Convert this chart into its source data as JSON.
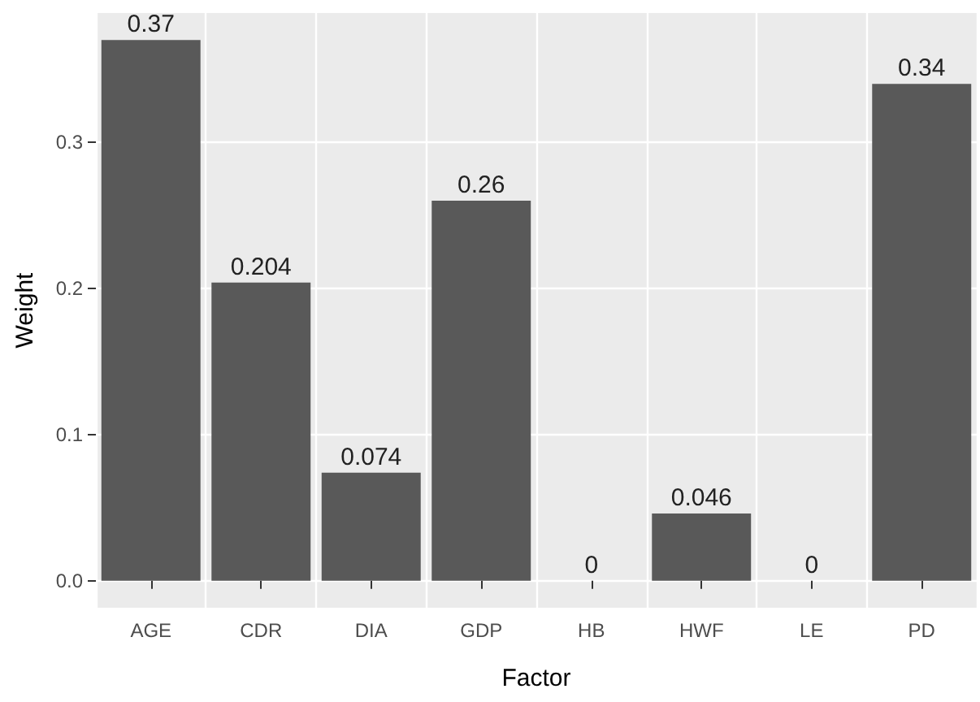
{
  "chart_data": {
    "type": "bar",
    "xlabel": "Factor",
    "ylabel": "Weight",
    "categories": [
      "AGE",
      "CDR",
      "DIA",
      "GDP",
      "HB",
      "HWF",
      "LE",
      "PD"
    ],
    "values": [
      0.37,
      0.204,
      0.074,
      0.26,
      0,
      0.046,
      0,
      0.34
    ],
    "color": "#595959",
    "ylim": [
      -0.0185,
      0.3885
    ],
    "yticks": [
      {
        "value": 0,
        "label": "0.0"
      },
      0.1,
      0.2,
      0.3
    ],
    "grid": true,
    "data_labels": true
  }
}
